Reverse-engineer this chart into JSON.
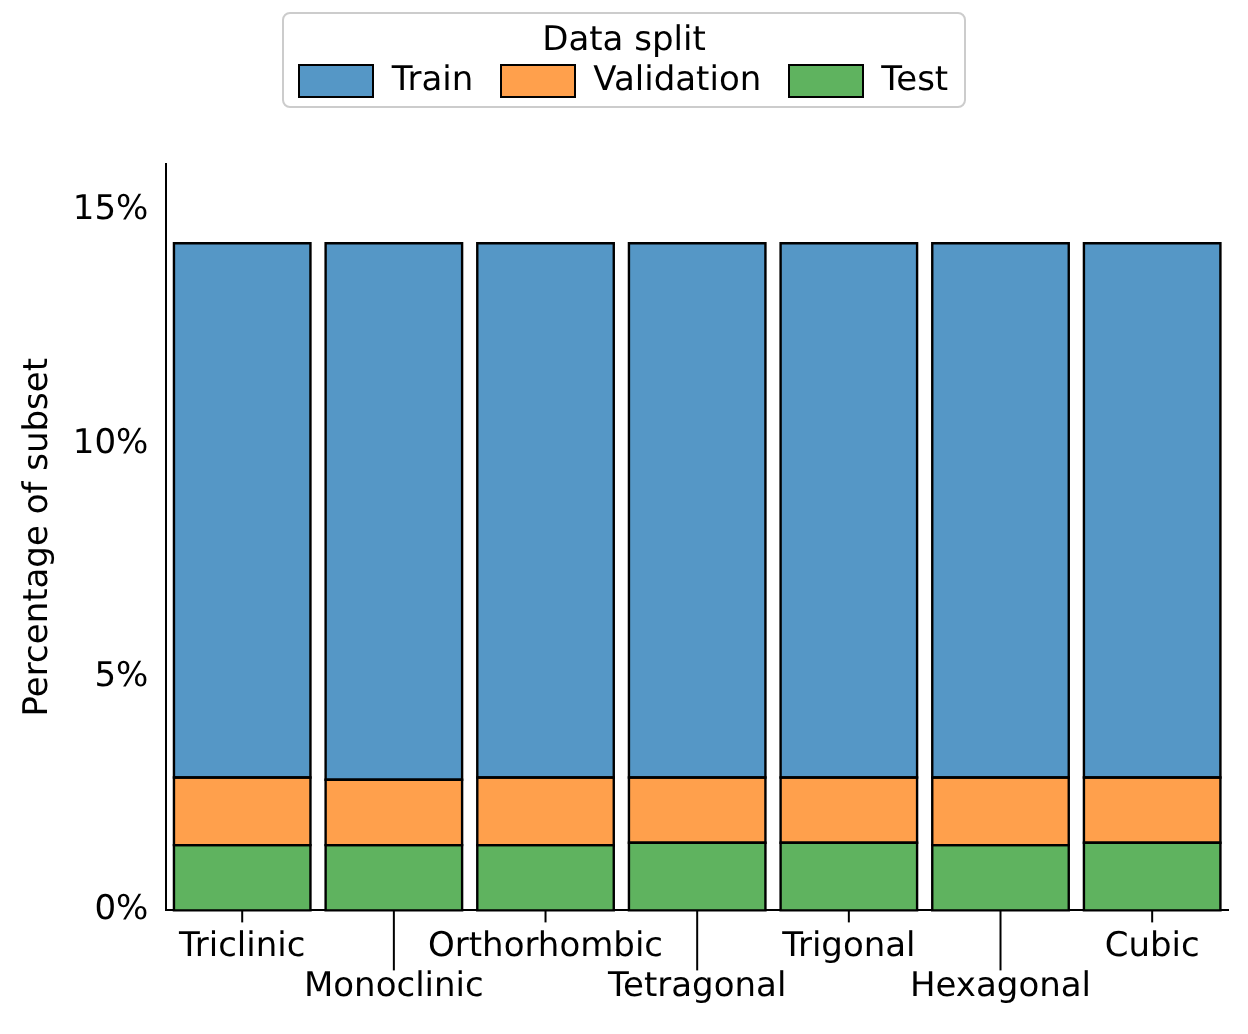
{
  "chart_data": {
    "type": "bar",
    "stacked": true,
    "ylabel": "Percentage of subset",
    "legend_title": "Data split",
    "legend": "top",
    "categories": [
      "Triclinic",
      "Monoclinic",
      "Orthorhombic",
      "Tetragonal",
      "Trigonal",
      "Hexagonal",
      "Cubic"
    ],
    "series": [
      {
        "name": "Test",
        "color": "#5fb35f",
        "values": [
          1.4,
          1.4,
          1.4,
          1.45,
          1.45,
          1.4,
          1.45
        ]
      },
      {
        "name": "Validation",
        "color": "#ffa04c",
        "values": [
          1.45,
          1.4,
          1.45,
          1.4,
          1.4,
          1.45,
          1.4
        ]
      },
      {
        "name": "Train",
        "color": "#5597c6",
        "values": [
          11.45,
          11.5,
          11.45,
          11.45,
          11.45,
          11.45,
          11.45
        ]
      }
    ],
    "ylim": [
      0,
      16
    ],
    "yticks": [
      {
        "value": 0,
        "label": "0%"
      },
      {
        "value": 5,
        "label": "5%"
      },
      {
        "value": 10,
        "label": "10%"
      },
      {
        "value": 15,
        "label": "15%"
      }
    ],
    "grid": false
  }
}
